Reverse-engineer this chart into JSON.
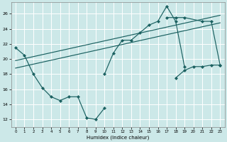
{
  "xlabel": "Humidex (Indice chaleur)",
  "bg_color": "#cce8e8",
  "grid_color": "#aadddd",
  "line_color": "#1a6060",
  "xlim": [
    -0.5,
    23.5
  ],
  "ylim": [
    11,
    27.5
  ],
  "xticks": [
    0,
    1,
    2,
    3,
    4,
    5,
    6,
    7,
    8,
    9,
    10,
    11,
    12,
    13,
    14,
    15,
    16,
    17,
    18,
    19,
    20,
    21,
    22,
    23
  ],
  "yticks": [
    12,
    14,
    16,
    18,
    20,
    22,
    24,
    26
  ],
  "series": [
    {
      "x": [
        0,
        1,
        2,
        3,
        4,
        5,
        6,
        7,
        8,
        9,
        10
      ],
      "y": [
        21.5,
        20.5,
        18.0,
        16.2,
        15.0,
        14.5,
        15.0,
        15.0,
        12.2,
        12.0,
        13.5
      ]
    },
    {
      "x": [
        10,
        11,
        12,
        13,
        14,
        15,
        16,
        17,
        18,
        19
      ],
      "y": [
        18.0,
        20.8,
        22.5,
        22.5,
        23.5,
        24.5,
        25.0,
        27.0,
        25.0,
        19.0
      ]
    },
    {
      "x": [
        17,
        18,
        19,
        21,
        22,
        23
      ],
      "y": [
        25.5,
        25.5,
        25.5,
        25.0,
        25.0,
        19.2
      ]
    },
    {
      "x": [
        18,
        19,
        20,
        21,
        22,
        23
      ],
      "y": [
        17.5,
        18.5,
        19.0,
        19.0,
        19.2,
        19.2
      ]
    }
  ],
  "trend_lines": [
    {
      "x": [
        0,
        23
      ],
      "y": [
        18.8,
        24.8
      ]
    },
    {
      "x": [
        0,
        23
      ],
      "y": [
        19.8,
        25.8
      ]
    }
  ]
}
